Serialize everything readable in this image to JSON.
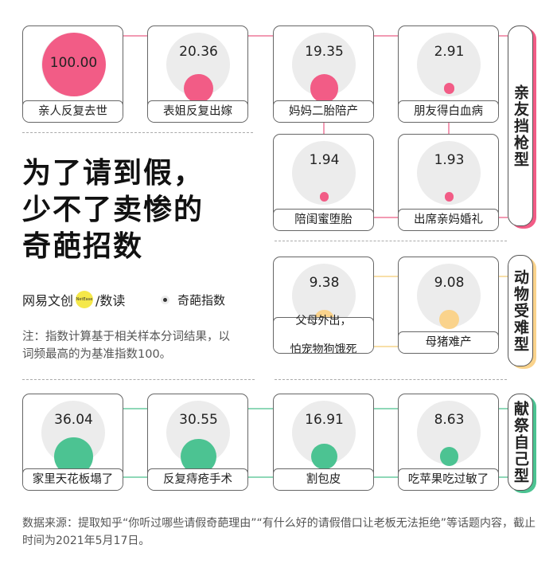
{
  "title": [
    "为了请到假，",
    "少不了卖惨的",
    "奇葩招数"
  ],
  "logo": {
    "brand": "网易文创",
    "mark": "NetEase",
    "sub": "/数读"
  },
  "legend": {
    "label": "奇葩指数"
  },
  "note": "注：指数计算基于相关样本分词结果，以词频最高的为基准指数100。",
  "source": "数据来源：提取知乎“你听过哪些请假奇葩理由”“有什么好的请假借口让老板无法拒绝”等话题内容，截止时间为2021年5月17日。",
  "colors": {
    "relatives": "#f25c86",
    "animals": "#fad38c",
    "self": "#4cc392",
    "disc": "#ececec"
  },
  "chart_data": {
    "type": "bubble",
    "max_value": 100,
    "groups": [
      {
        "name": "亲友挡枪型",
        "color": "#f25c86",
        "line_color": "#f29ab3",
        "items": [
          {
            "label": "亲人反复去世",
            "value": 100.0,
            "display": "100.00"
          },
          {
            "label": "表姐反复出嫁",
            "value": 20.36,
            "display": "20.36"
          },
          {
            "label": "妈妈二胎陪产",
            "value": 19.35,
            "display": "19.35"
          },
          {
            "label": "朋友得白血病",
            "value": 2.91,
            "display": "2.91"
          },
          {
            "label": "陪闺蜜堕胎",
            "value": 1.94,
            "display": "1.94"
          },
          {
            "label": "出席亲妈婚礼",
            "value": 1.93,
            "display": "1.93"
          }
        ]
      },
      {
        "name": "动物受难型",
        "color": "#fad38c",
        "line_color": "#f8dfa8",
        "items": [
          {
            "label": "父母外出，怕宠物狗饿死",
            "label_lines": [
              "父母外出，",
              "怕宠物狗饿死"
            ],
            "value": 9.38,
            "display": "9.38"
          },
          {
            "label": "母猪难产",
            "value": 9.08,
            "display": "9.08"
          }
        ]
      },
      {
        "name": "献祭自己型",
        "color": "#4cc392",
        "line_color": "#8fd8b8",
        "items": [
          {
            "label": "家里天花板塌了",
            "value": 36.04,
            "display": "36.04"
          },
          {
            "label": "反复痔疮手术",
            "value": 30.55,
            "display": "30.55"
          },
          {
            "label": "割包皮",
            "value": 16.91,
            "display": "16.91"
          },
          {
            "label": "吃苹果吃过敏了",
            "value": 8.63,
            "display": "8.63"
          }
        ]
      }
    ]
  }
}
